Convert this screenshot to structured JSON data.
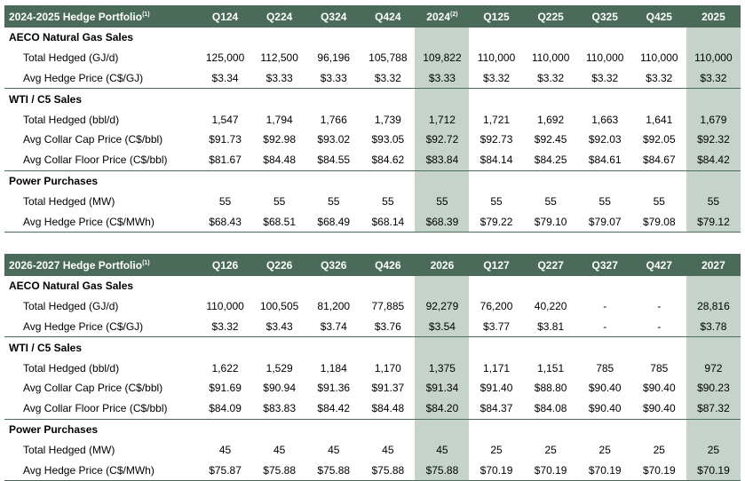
{
  "tables": [
    {
      "title": "2024-2025 Hedge Portfolio",
      "title_note": "(1)",
      "columns": [
        "Q124",
        "Q224",
        "Q324",
        "Q424",
        "2024",
        "Q125",
        "Q225",
        "Q325",
        "Q425",
        "2025"
      ],
      "column_notes": [
        "",
        "",
        "",
        "",
        "(2)",
        "",
        "",
        "",
        "",
        ""
      ],
      "sections": [
        {
          "name": "AECO Natural Gas Sales",
          "rows": [
            {
              "label": "Total Hedged (GJ/d)",
              "values": [
                "125,000",
                "112,500",
                "96,196",
                "105,788",
                "109,822",
                "110,000",
                "110,000",
                "110,000",
                "110,000",
                "110,000"
              ]
            },
            {
              "label": "Avg Hedge Price (C$/GJ)",
              "values": [
                "$3.34",
                "$3.33",
                "$3.33",
                "$3.32",
                "$3.33",
                "$3.32",
                "$3.32",
                "$3.32",
                "$3.32",
                "$3.32"
              ]
            }
          ]
        },
        {
          "name": "WTI / C5 Sales",
          "rows": [
            {
              "label": "Total Hedged (bbl/d)",
              "values": [
                "1,547",
                "1,794",
                "1,766",
                "1,739",
                "1,712",
                "1,721",
                "1,692",
                "1,663",
                "1,641",
                "1,679"
              ]
            },
            {
              "label": "Avg Collar Cap Price (C$/bbl)",
              "values": [
                "$91.73",
                "$92.98",
                "$93.02",
                "$93.05",
                "$92.72",
                "$92.73",
                "$92.45",
                "$92.03",
                "$92.05",
                "$92.32"
              ]
            },
            {
              "label": "Avg Collar Floor Price (C$/bbl)",
              "values": [
                "$81.67",
                "$84.48",
                "$84.55",
                "$84.62",
                "$83.84",
                "$84.14",
                "$84.25",
                "$84.61",
                "$84.67",
                "$84.42"
              ]
            }
          ]
        },
        {
          "name": "Power Purchases",
          "rows": [
            {
              "label": "Total Hedged (MW)",
              "values": [
                "55",
                "55",
                "55",
                "55",
                "55",
                "55",
                "55",
                "55",
                "55",
                "55"
              ]
            },
            {
              "label": "Avg Hedge Price (C$/MWh)",
              "values": [
                "$68.43",
                "$68.51",
                "$68.49",
                "$68.14",
                "$68.39",
                "$79.22",
                "$79.10",
                "$79.07",
                "$79.08",
                "$79.12"
              ]
            }
          ]
        }
      ]
    },
    {
      "title": "2026-2027 Hedge Portfolio",
      "title_note": "(1)",
      "columns": [
        "Q126",
        "Q226",
        "Q326",
        "Q426",
        "2026",
        "Q127",
        "Q227",
        "Q327",
        "Q427",
        "2027"
      ],
      "column_notes": [
        "",
        "",
        "",
        "",
        "",
        "",
        "",
        "",
        "",
        ""
      ],
      "sections": [
        {
          "name": "AECO Natural Gas Sales",
          "rows": [
            {
              "label": "Total Hedged (GJ/d)",
              "values": [
                "110,000",
                "100,505",
                "81,200",
                "77,885",
                "92,279",
                "76,200",
                "40,220",
                "-",
                "-",
                "28,816"
              ]
            },
            {
              "label": "Avg Hedge Price (C$/GJ)",
              "values": [
                "$3.32",
                "$3.43",
                "$3.74",
                "$3.76",
                "$3.54",
                "$3.77",
                "$3.81",
                "-",
                "-",
                "$3.78"
              ]
            }
          ]
        },
        {
          "name": "WTI / C5 Sales",
          "rows": [
            {
              "label": "Total Hedged (bbl/d)",
              "values": [
                "1,622",
                "1,529",
                "1,184",
                "1,170",
                "1,375",
                "1,171",
                "1,151",
                "785",
                "785",
                "972"
              ]
            },
            {
              "label": "Avg Collar Cap Price (C$/bbl)",
              "values": [
                "$91.69",
                "$90.94",
                "$91.36",
                "$91.37",
                "$91.34",
                "$91.40",
                "$88.80",
                "$90.40",
                "$90.40",
                "$90.23"
              ]
            },
            {
              "label": "Avg Collar Floor Price (C$/bbl)",
              "values": [
                "$84.09",
                "$83.83",
                "$84.42",
                "$84.48",
                "$84.20",
                "$84.37",
                "$84.08",
                "$90.40",
                "$90.40",
                "$87.32"
              ]
            }
          ]
        },
        {
          "name": "Power Purchases",
          "rows": [
            {
              "label": "Total Hedged (MW)",
              "values": [
                "45",
                "45",
                "45",
                "45",
                "45",
                "25",
                "25",
                "25",
                "25",
                "25"
              ]
            },
            {
              "label": "Avg Hedge Price (C$/MWh)",
              "values": [
                "$75.87",
                "$75.88",
                "$75.88",
                "$75.88",
                "$75.88",
                "$70.19",
                "$70.19",
                "$70.19",
                "$70.19",
                "$70.19"
              ]
            }
          ]
        }
      ]
    }
  ],
  "colors": {
    "header_bg": "#4a6b5a",
    "annual_shade": "#c5d3cb"
  }
}
